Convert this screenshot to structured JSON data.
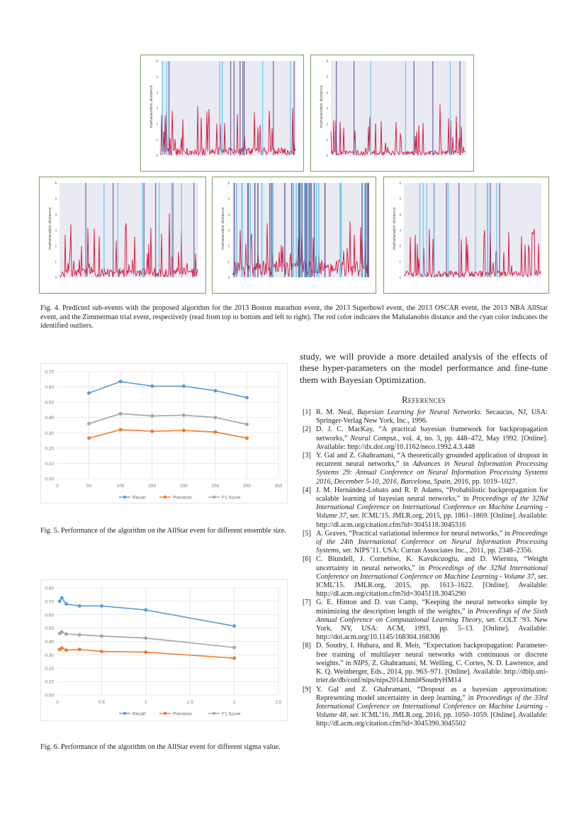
{
  "fig4": {
    "panels": [
      {
        "name": "boston-marathon-plot"
      },
      {
        "name": "superbowl-plot"
      },
      {
        "name": "oscar-plot"
      },
      {
        "name": "nba-allstar-plot"
      },
      {
        "name": "zimmerman-trial-plot"
      }
    ],
    "ylabel": "mahalanobis distance",
    "yticks": [
      "0",
      "1",
      "2",
      "3",
      "4",
      "5",
      "6"
    ],
    "colors": {
      "distance": "#d9133a",
      "outlier": "#4fc3f0",
      "outlier_overlap": "#5a4f8e",
      "background": "#eaeaf2"
    },
    "caption": "Fig. 4.  Predicted sub-events with the proposed algorithm for the 2013 Boston marathon event, the 2013 Superbowl event, the 2013 OSCAR event, the 2013 NBA AllStar event, and the Zimmerman trial event, respectively (read from top to bottom and left to right). The red color indicates the Mahalanobis distance and the cyan color indicates the identified outliers."
  },
  "chart_data": [
    {
      "type": "line",
      "x": [
        50,
        100,
        150,
        200,
        250,
        300
      ],
      "series": [
        {
          "name": "Recall",
          "color": "#5b9bd5",
          "values": [
            0.56,
            0.635,
            0.605,
            0.605,
            0.575,
            0.53
          ]
        },
        {
          "name": "Precision",
          "color": "#ed7d31",
          "values": [
            0.265,
            0.32,
            0.31,
            0.315,
            0.305,
            0.265
          ]
        },
        {
          "name": "F1 Score",
          "color": "#a5a5a5",
          "values": [
            0.36,
            0.425,
            0.41,
            0.415,
            0.4,
            0.355
          ]
        }
      ],
      "xlim": [
        0,
        350
      ],
      "ylim": [
        0,
        0.7
      ],
      "xticks": [
        "0",
        "50",
        "100",
        "150",
        "200",
        "250",
        "300",
        "350"
      ],
      "yticks": [
        "0.00",
        "0.10",
        "0.20",
        "0.30",
        "0.40",
        "0.50",
        "0.60",
        "0.70"
      ],
      "grid": true,
      "legend": "bottom"
    },
    {
      "type": "line",
      "x": [
        0.025,
        0.05,
        0.1,
        0.25,
        0.5,
        1,
        2
      ],
      "series": [
        {
          "name": "Recall",
          "color": "#5b9bd5",
          "values": [
            0.7,
            0.725,
            0.68,
            0.665,
            0.665,
            0.635,
            0.515
          ]
        },
        {
          "name": "Precision",
          "color": "#ed7d31",
          "values": [
            0.34,
            0.35,
            0.335,
            0.34,
            0.325,
            0.32,
            0.275
          ]
        },
        {
          "name": "F1 Score",
          "color": "#a5a5a5",
          "values": [
            0.46,
            0.47,
            0.455,
            0.45,
            0.44,
            0.425,
            0.355
          ]
        }
      ],
      "xlim": [
        0,
        2.5
      ],
      "ylim": [
        0,
        0.8
      ],
      "xticks": [
        "0",
        "0.5",
        "1",
        "1.5",
        "2",
        "2.5"
      ],
      "yticks": [
        "0.00",
        "0.10",
        "0.20",
        "0.30",
        "0.40",
        "0.50",
        "0.60",
        "0.70",
        "0.80"
      ],
      "grid": true,
      "legend": "bottom"
    }
  ],
  "fig5_caption": "Fig. 5.  Performance of the algorithm on the AllStar event for different ensemble size.",
  "fig6_caption": "Fig. 6.  Performance of the algorithm on the AllStar event for different sigma value.",
  "body_text": "study, we will provide a more detailed analysis of the effects of these hyper-parameters on the model performance and fine-tune them with Bayesian Optimization.",
  "references_heading": "References",
  "references": [
    {
      "num": "[1]",
      "a": "R. M. Neal, ",
      "i": "Bayesian Learning for Neural Networks",
      "b": ".   Secaucus, NJ, USA: Springer-Verlag New York, Inc., 1996."
    },
    {
      "num": "[2]",
      "a": "D. J. C. MacKay, “A practical bayesian framework for backpropagation networks,” ",
      "i": "Neural Comput.",
      "b": ", vol. 4, no. 3, pp. 448–472, May 1992. [Online]. Available: http://dx.doi.org/10.1162/neco.1992.4.3.448"
    },
    {
      "num": "[3]",
      "a": "Y. Gal and Z. Ghahramani, “A theoretically grounded application of dropout in recurrent neural networks,” in ",
      "i": "Advances in Neural Information Processing Systems 29: Annual Conference on Neural Information Processing Systems 2016, December 5-10, 2016, Barcelona, Spain",
      "b": ", 2016, pp. 1019–1027."
    },
    {
      "num": "[4]",
      "a": "J. M. Hernández-Lobato and R. P. Adams, “Probabilistic backpropagation for scalable learning of bayesian neural networks,” in ",
      "i": "Proceedings of the 32Nd International Conference on International Conference on Machine Learning - Volume 37",
      "b": ", ser. ICML’15.  JMLR.org, 2015, pp. 1861–1869. [Online]. Available: http://dl.acm.org/citation.cfm?id=3045118.3045316"
    },
    {
      "num": "[5]",
      "a": "A. Graves, “Practical variational inference for neural networks,” in ",
      "i": "Proceedings of the 24th International Conference on Neural Information Processing Systems",
      "b": ", ser. NIPS’11.  USA: Curran Associates Inc., 2011, pp. 2348–2356."
    },
    {
      "num": "[6]",
      "a": "C. Blundell, J. Cornebise, K. Kavukcuoglu, and D. Wierstra, “Weight uncertainty in neural networks,” in ",
      "i": "Proceedings of the 32Nd International Conference on International Conference on Machine Learning - Volume 37",
      "b": ", ser. ICML’15.  JMLR.org, 2015, pp. 1613–1622. [Online]. Available: http://dl.acm.org/citation.cfm?id=3045118.3045290"
    },
    {
      "num": "[7]",
      "a": "G. E. Hinton and D. van Camp, “Keeping the neural networks simple by minimizing the description length of the weights,” in ",
      "i": "Proceedings of the Sixth Annual Conference on Computational Learning Theory",
      "b": ", ser. COLT ’93.  New York, NY, USA: ACM, 1993, pp. 5–13. [Online]. Available: http://doi.acm.org/10.1145/168304.168306"
    },
    {
      "num": "[8]",
      "a": "D. Soudry, I. Hubara, and R. Meir, “Expectation backpropagation: Parameter-free training of multilayer neural networks with continuous or discrete weights.” in ",
      "i": "NIPS",
      "b": ", Z. Ghahramani, M. Welling, C. Cortes, N. D. Lawrence, and K. Q. Weinberger, Eds., 2014, pp. 963–971. [Online]. Available: http://dblp.uni-trier.de/db/conf/nips/nips2014.html#SoudryHM14"
    },
    {
      "num": "[9]",
      "a": "Y. Gal and Z. Ghahramani, “Dropout as a bayesian approximation: Representing model uncertainty in deep learning,” in ",
      "i": "Proceedings of the 33rd International Conference on International Conference on Machine Learning - Volume 48",
      "b": ", ser. ICML’16.  JMLR.org, 2016, pp. 1050–1059. [Online]. Available: http://dl.acm.org/citation.cfm?id=3045390.3045502"
    }
  ]
}
